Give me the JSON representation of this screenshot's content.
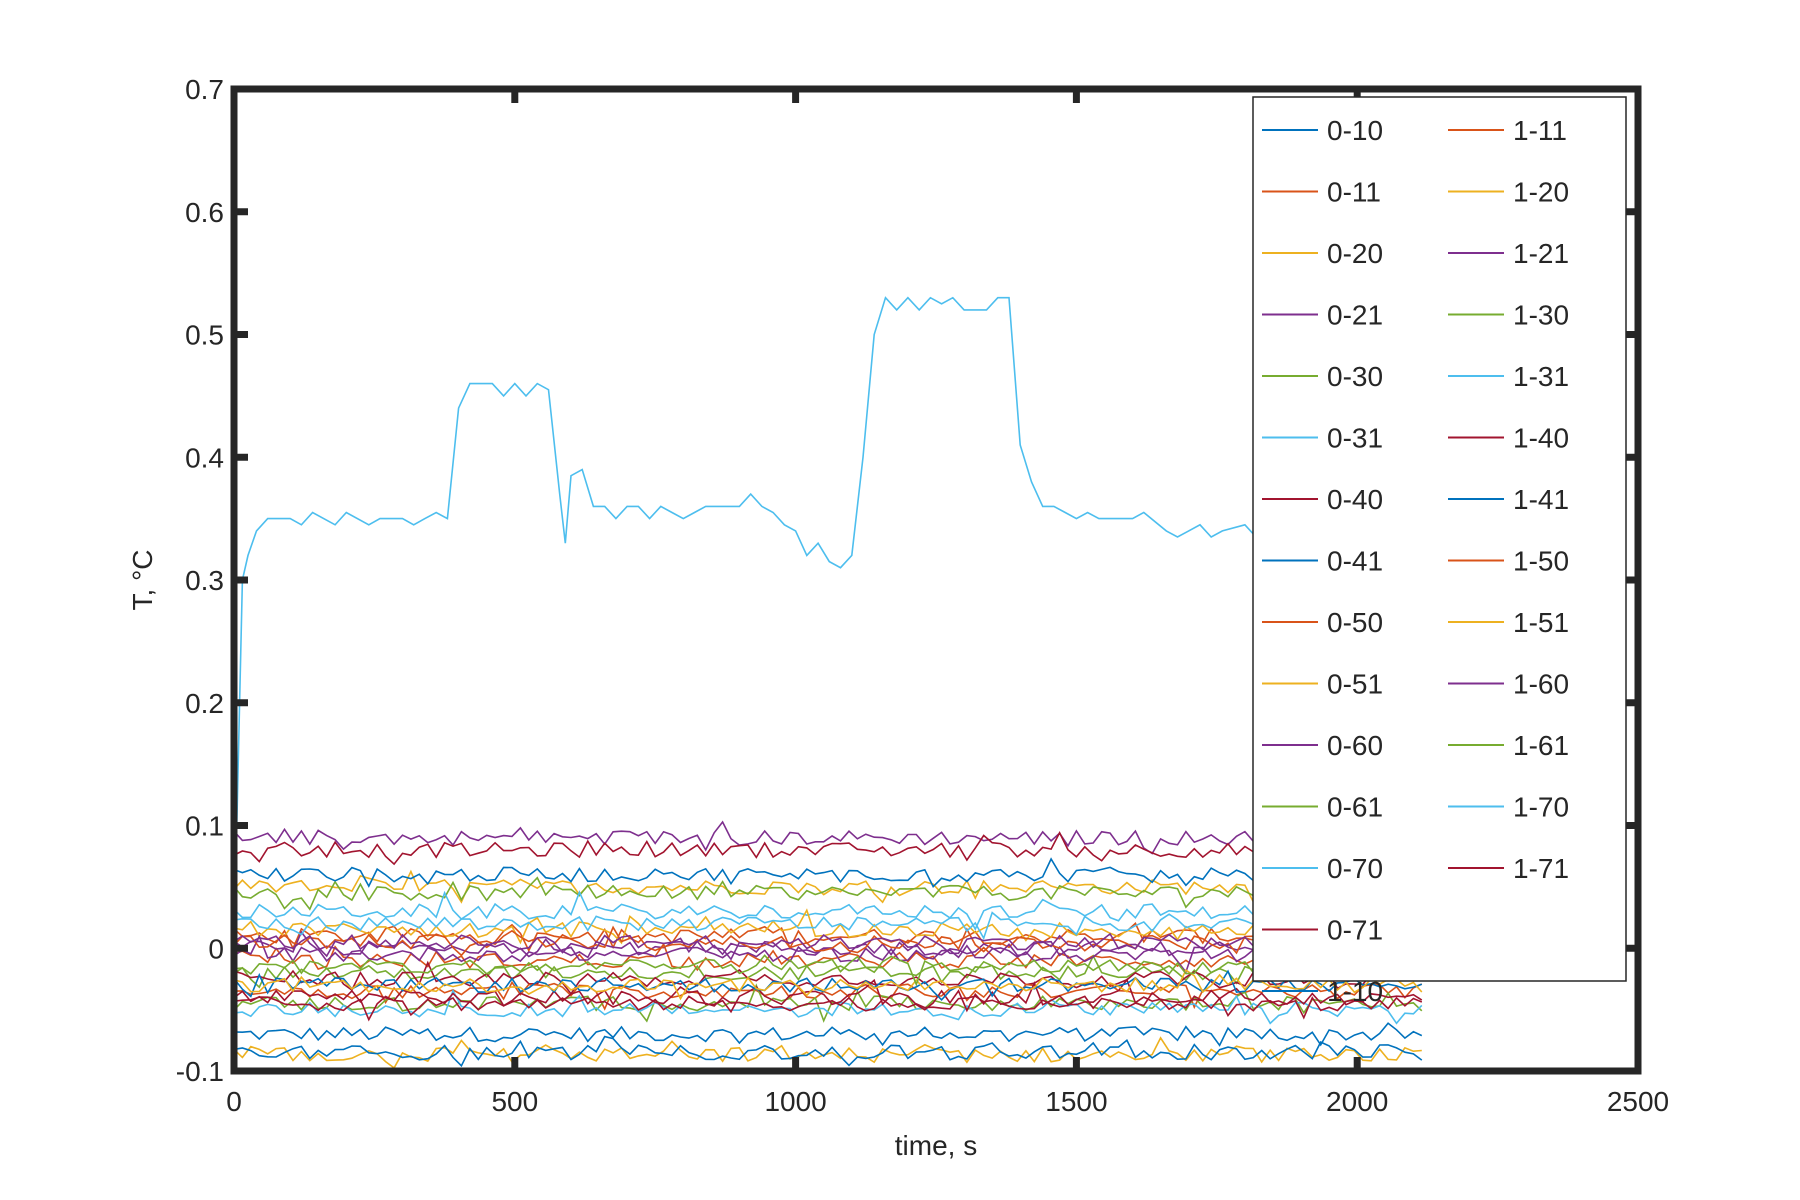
{
  "chart_data": {
    "type": "line",
    "xlabel": "time, s",
    "ylabel": "T, °C",
    "xlim": [
      0,
      2500
    ],
    "ylim": [
      -0.1,
      0.7
    ],
    "xticks": [
      0,
      500,
      1000,
      1500,
      2000,
      2500
    ],
    "xtick_labels": [
      "0",
      "500",
      "1000",
      "1500",
      "2000",
      "2500"
    ],
    "yticks": [
      -0.1,
      0,
      0.1,
      0.2,
      0.3,
      0.4,
      0.5,
      0.6,
      0.7
    ],
    "ytick_labels": [
      "-0.1",
      "0",
      "0.1",
      "0.2",
      "0.3",
      "0.4",
      "0.5",
      "0.6",
      "0.7"
    ],
    "grid": false,
    "legend_position": "top-right",
    "series": [
      {
        "name": "0-10",
        "color": "#0072BD",
        "base": -0.07,
        "x_end": 2120
      },
      {
        "name": "0-11",
        "color": "#D95319",
        "base": 0.01,
        "x_end": 2120
      },
      {
        "name": "0-20",
        "color": "#EDB120",
        "base": 0.05,
        "x_end": 2120
      },
      {
        "name": "0-21",
        "color": "#7E2F8E",
        "base": 0.09,
        "x_end": 2120
      },
      {
        "name": "0-30",
        "color": "#77AC30",
        "base": 0.045,
        "x_end": 2120
      },
      {
        "name": "0-31",
        "color": "#4DBEEE",
        "x_end": 2120,
        "points": [
          [
            0,
            0
          ],
          [
            5,
            0.1
          ],
          [
            10,
            0.2
          ],
          [
            15,
            0.3
          ],
          [
            25,
            0.32
          ],
          [
            40,
            0.34
          ],
          [
            60,
            0.35
          ],
          [
            100,
            0.35
          ],
          [
            120,
            0.345
          ],
          [
            140,
            0.355
          ],
          [
            180,
            0.345
          ],
          [
            200,
            0.355
          ],
          [
            240,
            0.345
          ],
          [
            260,
            0.35
          ],
          [
            300,
            0.35
          ],
          [
            320,
            0.345
          ],
          [
            340,
            0.35
          ],
          [
            360,
            0.355
          ],
          [
            380,
            0.35
          ],
          [
            400,
            0.44
          ],
          [
            420,
            0.46
          ],
          [
            460,
            0.46
          ],
          [
            480,
            0.45
          ],
          [
            500,
            0.46
          ],
          [
            520,
            0.45
          ],
          [
            540,
            0.46
          ],
          [
            560,
            0.455
          ],
          [
            580,
            0.37
          ],
          [
            590,
            0.33
          ],
          [
            600,
            0.385
          ],
          [
            620,
            0.39
          ],
          [
            640,
            0.36
          ],
          [
            660,
            0.36
          ],
          [
            680,
            0.35
          ],
          [
            700,
            0.36
          ],
          [
            720,
            0.36
          ],
          [
            740,
            0.35
          ],
          [
            760,
            0.36
          ],
          [
            780,
            0.355
          ],
          [
            800,
            0.35
          ],
          [
            820,
            0.355
          ],
          [
            840,
            0.36
          ],
          [
            880,
            0.36
          ],
          [
            900,
            0.36
          ],
          [
            920,
            0.37
          ],
          [
            940,
            0.36
          ],
          [
            960,
            0.355
          ],
          [
            980,
            0.345
          ],
          [
            1000,
            0.34
          ],
          [
            1020,
            0.32
          ],
          [
            1040,
            0.33
          ],
          [
            1060,
            0.315
          ],
          [
            1080,
            0.31
          ],
          [
            1100,
            0.32
          ],
          [
            1120,
            0.4
          ],
          [
            1140,
            0.5
          ],
          [
            1160,
            0.53
          ],
          [
            1180,
            0.52
          ],
          [
            1200,
            0.53
          ],
          [
            1220,
            0.52
          ],
          [
            1240,
            0.53
          ],
          [
            1260,
            0.525
          ],
          [
            1280,
            0.53
          ],
          [
            1300,
            0.52
          ],
          [
            1340,
            0.52
          ],
          [
            1360,
            0.53
          ],
          [
            1380,
            0.53
          ],
          [
            1400,
            0.41
          ],
          [
            1420,
            0.38
          ],
          [
            1440,
            0.36
          ],
          [
            1460,
            0.36
          ],
          [
            1480,
            0.355
          ],
          [
            1500,
            0.35
          ],
          [
            1520,
            0.355
          ],
          [
            1540,
            0.35
          ],
          [
            1600,
            0.35
          ],
          [
            1620,
            0.355
          ],
          [
            1660,
            0.34
          ],
          [
            1680,
            0.335
          ],
          [
            1700,
            0.34
          ],
          [
            1720,
            0.345
          ],
          [
            1740,
            0.335
          ],
          [
            1760,
            0.34
          ],
          [
            1800,
            0.345
          ],
          [
            1820,
            0.335
          ],
          [
            1840,
            0.34
          ],
          [
            1860,
            0.345
          ],
          [
            1880,
            0.335
          ],
          [
            1900,
            0.34
          ],
          [
            1920,
            0.345
          ],
          [
            1940,
            0.34
          ],
          [
            1960,
            0.345
          ],
          [
            1980,
            0.34
          ],
          [
            2000,
            0.345
          ],
          [
            2120,
            0.345
          ]
        ]
      },
      {
        "name": "0-40",
        "color": "#A2142F",
        "base": 0.08,
        "x_end": 2120
      },
      {
        "name": "0-41",
        "color": "#0072BD",
        "base": 0.06,
        "x_end": 2120
      },
      {
        "name": "0-50",
        "color": "#D95319",
        "base": -0.01,
        "x_end": 2120
      },
      {
        "name": "0-51",
        "color": "#EDB120",
        "base": -0.087,
        "x_end": 2120
      },
      {
        "name": "0-60",
        "color": "#7E2F8E",
        "base": 0.0,
        "x_end": 2120
      },
      {
        "name": "0-61",
        "color": "#77AC30",
        "base": -0.02,
        "x_end": 2120
      },
      {
        "name": "0-70",
        "color": "#4DBEEE",
        "base": 0.03,
        "x_end": 2120
      },
      {
        "name": "0-71",
        "color": "#A2142F",
        "base": -0.025,
        "x_end": 2120
      },
      {
        "name": "1-10",
        "color": "#0072BD",
        "base": -0.085,
        "x_end": 2120
      },
      {
        "name": "1-11",
        "color": "#D95319",
        "base": -0.035,
        "x_end": 2120
      },
      {
        "name": "1-20",
        "color": "#EDB120",
        "base": 0.015,
        "x_end": 2120
      },
      {
        "name": "1-21",
        "color": "#7E2F8E",
        "base": -0.005,
        "x_end": 2120
      },
      {
        "name": "1-30",
        "color": "#77AC30",
        "base": -0.045,
        "x_end": 2120
      },
      {
        "name": "1-31",
        "color": "#4DBEEE",
        "base": -0.05,
        "x_end": 2120
      },
      {
        "name": "1-40",
        "color": "#A2142F",
        "base": -0.04,
        "x_end": 2120
      },
      {
        "name": "1-41",
        "color": "#0072BD",
        "base": -0.03,
        "x_end": 2120
      },
      {
        "name": "1-50",
        "color": "#D95319",
        "base": 0.005,
        "x_end": 2120
      },
      {
        "name": "1-51",
        "color": "#EDB120",
        "base": -0.03,
        "x_end": 2120
      },
      {
        "name": "1-60",
        "color": "#7E2F8E",
        "base": 0.005,
        "x_end": 2120
      },
      {
        "name": "1-61",
        "color": "#77AC30",
        "base": -0.015,
        "x_end": 2120
      },
      {
        "name": "1-70",
        "color": "#4DBEEE",
        "base": 0.02,
        "x_end": 2120
      },
      {
        "name": "1-71",
        "color": "#A2142F",
        "base": -0.045,
        "x_end": 2120
      }
    ]
  }
}
